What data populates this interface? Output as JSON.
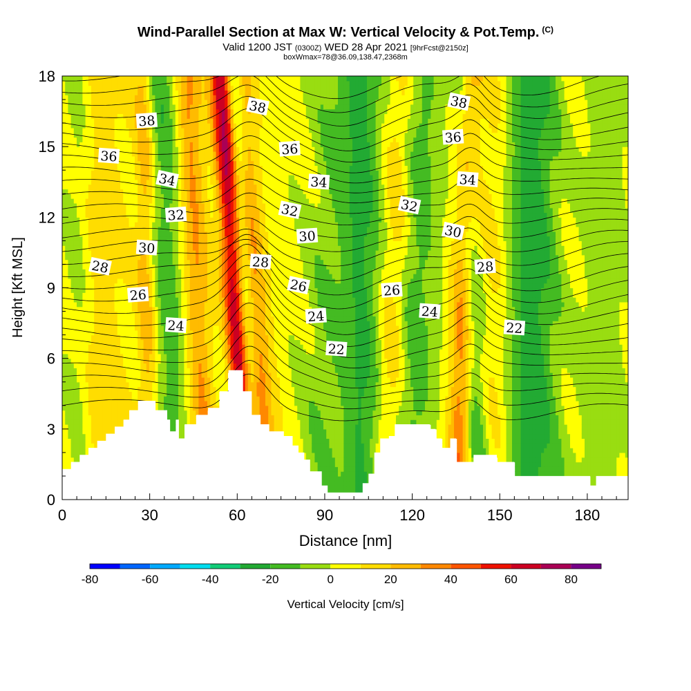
{
  "title": {
    "main": "Wind-Parallel Section at Max W: Vertical Velocity & Pot.Temp.",
    "copyright": "(C)",
    "valid_prefix": "Valid 1200 JST",
    "valid_utc": "(0300Z)",
    "valid_date": "WED 28 Apr 2021",
    "forecast": "[9hrFcst@2150z]",
    "box_info": "boxWmax=78@36.09,138.47,2368m"
  },
  "chart_data": {
    "type": "heatmap",
    "xlabel": "Distance [nm]",
    "ylabel": "Height [Kft MSL]",
    "xlim": [
      0,
      194
    ],
    "ylim": [
      0,
      18
    ],
    "x_ticks": [
      0,
      30,
      60,
      90,
      120,
      150,
      180
    ],
    "y_ticks": [
      0,
      3,
      6,
      9,
      12,
      15,
      18
    ],
    "colorbar": {
      "label": "Vertical Velocity [cm/s]",
      "ticks": [
        -80,
        -60,
        -40,
        -20,
        0,
        20,
        40,
        60,
        80
      ],
      "range": [
        -80,
        90
      ],
      "step": 10,
      "colors": [
        "#0000ff",
        "#0066ff",
        "#00aaff",
        "#00ddee",
        "#11cc77",
        "#22aa33",
        "#44bb22",
        "#99dd11",
        "#ffff00",
        "#ffdd00",
        "#ffbb00",
        "#ff8800",
        "#ff5500",
        "#ee1100",
        "#cc0022",
        "#aa0055",
        "#770088"
      ]
    },
    "vertical_velocity_bands": [
      {
        "x": 62,
        "width": 7,
        "tilt": -0.55,
        "w": 80
      },
      {
        "x": 64,
        "width": 3,
        "tilt": -0.45,
        "w": -60
      },
      {
        "x": 56,
        "width": 3.5,
        "tilt": -0.5,
        "w": -25
      },
      {
        "x": 47,
        "width": 4,
        "tilt": -0.35,
        "w": 25
      },
      {
        "x": 37,
        "width": 5,
        "tilt": -0.25,
        "w": -20
      },
      {
        "x": 29,
        "width": 3,
        "tilt": -0.1,
        "w": 20
      },
      {
        "x": 14,
        "width": 10,
        "tilt": 0.0,
        "w": 10
      },
      {
        "x": 5,
        "width": 4,
        "tilt": 0.0,
        "w": -10
      },
      {
        "x": 90,
        "width": 8,
        "tilt": 0.3,
        "w": -12
      },
      {
        "x": 103,
        "width": 7,
        "tilt": 0.0,
        "w": -25
      },
      {
        "x": 113,
        "width": 5,
        "tilt": 0.3,
        "w": 20
      },
      {
        "x": 120,
        "width": 8,
        "tilt": 0.2,
        "w": -20
      },
      {
        "x": 137,
        "width": 4,
        "tilt": 0.2,
        "w": 35
      },
      {
        "x": 141,
        "width": 4,
        "tilt": -0.3,
        "w": -25
      },
      {
        "x": 148,
        "width": 6,
        "tilt": 0.0,
        "w": 10
      },
      {
        "x": 161,
        "width": 9,
        "tilt": 0.0,
        "w": -30
      },
      {
        "x": 185,
        "width": 8,
        "tilt": 0.2,
        "w": -12
      }
    ],
    "potential_temperature_labels": [
      {
        "text": "38",
        "x": 29,
        "y": 16.1
      },
      {
        "text": "36",
        "x": 16,
        "y": 14.6
      },
      {
        "text": "34",
        "x": 36,
        "y": 13.6
      },
      {
        "text": "32",
        "x": 39,
        "y": 12.1
      },
      {
        "text": "30",
        "x": 29,
        "y": 10.7
      },
      {
        "text": "28",
        "x": 13,
        "y": 9.9
      },
      {
        "text": "26",
        "x": 26,
        "y": 8.7
      },
      {
        "text": "24",
        "x": 39,
        "y": 7.4
      },
      {
        "text": "38",
        "x": 67,
        "y": 16.7
      },
      {
        "text": "36",
        "x": 78,
        "y": 14.9
      },
      {
        "text": "34",
        "x": 88,
        "y": 13.5
      },
      {
        "text": "32",
        "x": 78,
        "y": 12.3
      },
      {
        "text": "30",
        "x": 84,
        "y": 11.2
      },
      {
        "text": "28",
        "x": 68,
        "y": 10.1
      },
      {
        "text": "26",
        "x": 81,
        "y": 9.1
      },
      {
        "text": "24",
        "x": 87,
        "y": 7.8
      },
      {
        "text": "22",
        "x": 94,
        "y": 6.4
      },
      {
        "text": "32",
        "x": 119,
        "y": 12.5
      },
      {
        "text": "26",
        "x": 113,
        "y": 8.9
      },
      {
        "text": "24",
        "x": 126,
        "y": 8.0
      },
      {
        "text": "38",
        "x": 136,
        "y": 16.9
      },
      {
        "text": "36",
        "x": 134,
        "y": 15.4
      },
      {
        "text": "34",
        "x": 139,
        "y": 13.6
      },
      {
        "text": "30",
        "x": 134,
        "y": 11.4
      },
      {
        "text": "28",
        "x": 145,
        "y": 9.9
      },
      {
        "text": "22",
        "x": 155,
        "y": 7.3
      }
    ],
    "terrain": [
      [
        0,
        1.3
      ],
      [
        3,
        1.3
      ],
      [
        3,
        1.6
      ],
      [
        6,
        1.6
      ],
      [
        6,
        1.9
      ],
      [
        9,
        1.9
      ],
      [
        9,
        2.2
      ],
      [
        12,
        2.2
      ],
      [
        12,
        2.5
      ],
      [
        15,
        2.5
      ],
      [
        15,
        2.8
      ],
      [
        18,
        2.8
      ],
      [
        18,
        3.1
      ],
      [
        21,
        3.1
      ],
      [
        21,
        3.4
      ],
      [
        23,
        3.4
      ],
      [
        23,
        3.8
      ],
      [
        26,
        3.8
      ],
      [
        26,
        4.2
      ],
      [
        32,
        4.2
      ],
      [
        32,
        3.8
      ],
      [
        36,
        3.8
      ],
      [
        36,
        3.4
      ],
      [
        37,
        3.4
      ],
      [
        37,
        2.9
      ],
      [
        39,
        2.9
      ],
      [
        39,
        3.4
      ],
      [
        40,
        3.4
      ],
      [
        40,
        2.6
      ],
      [
        42,
        2.6
      ],
      [
        42,
        3.2
      ],
      [
        46,
        3.2
      ],
      [
        46,
        3.6
      ],
      [
        50,
        3.6
      ],
      [
        50,
        3.9
      ],
      [
        54,
        3.9
      ],
      [
        54,
        4.6
      ],
      [
        57,
        4.6
      ],
      [
        57,
        5.5
      ],
      [
        62,
        5.5
      ],
      [
        62,
        4.6
      ],
      [
        65,
        4.6
      ],
      [
        65,
        3.6
      ],
      [
        68,
        3.6
      ],
      [
        68,
        3.2
      ],
      [
        71,
        3.2
      ],
      [
        71,
        2.9
      ],
      [
        76,
        2.9
      ],
      [
        76,
        2.7
      ],
      [
        79,
        2.7
      ],
      [
        79,
        2.3
      ],
      [
        81,
        2.3
      ],
      [
        81,
        2.0
      ],
      [
        83,
        2.0
      ],
      [
        83,
        1.7
      ],
      [
        85,
        1.7
      ],
      [
        85,
        1.2
      ],
      [
        89,
        1.2
      ],
      [
        89,
        0.6
      ],
      [
        91,
        0.6
      ],
      [
        91,
        0.3
      ],
      [
        103,
        0.3
      ],
      [
        103,
        0.7
      ],
      [
        105,
        0.7
      ],
      [
        105,
        1.1
      ],
      [
        107,
        1.1
      ],
      [
        107,
        2.0
      ],
      [
        109,
        2.0
      ],
      [
        109,
        2.6
      ],
      [
        112,
        2.6
      ],
      [
        112,
        2.7
      ],
      [
        114,
        2.7
      ],
      [
        114,
        3.2
      ],
      [
        126,
        3.2
      ],
      [
        126,
        3.0
      ],
      [
        128,
        3.0
      ],
      [
        128,
        2.6
      ],
      [
        130,
        2.6
      ],
      [
        130,
        2.2
      ],
      [
        133,
        2.2
      ],
      [
        133,
        2.6
      ],
      [
        135,
        2.6
      ],
      [
        135,
        1.6
      ],
      [
        141,
        1.6
      ],
      [
        141,
        1.9
      ],
      [
        149,
        1.9
      ],
      [
        149,
        1.6
      ],
      [
        155,
        1.6
      ],
      [
        155,
        1.0
      ],
      [
        181,
        1.0
      ],
      [
        181,
        0.6
      ],
      [
        183,
        0.6
      ],
      [
        183,
        1.0
      ],
      [
        194,
        1.0
      ]
    ]
  }
}
